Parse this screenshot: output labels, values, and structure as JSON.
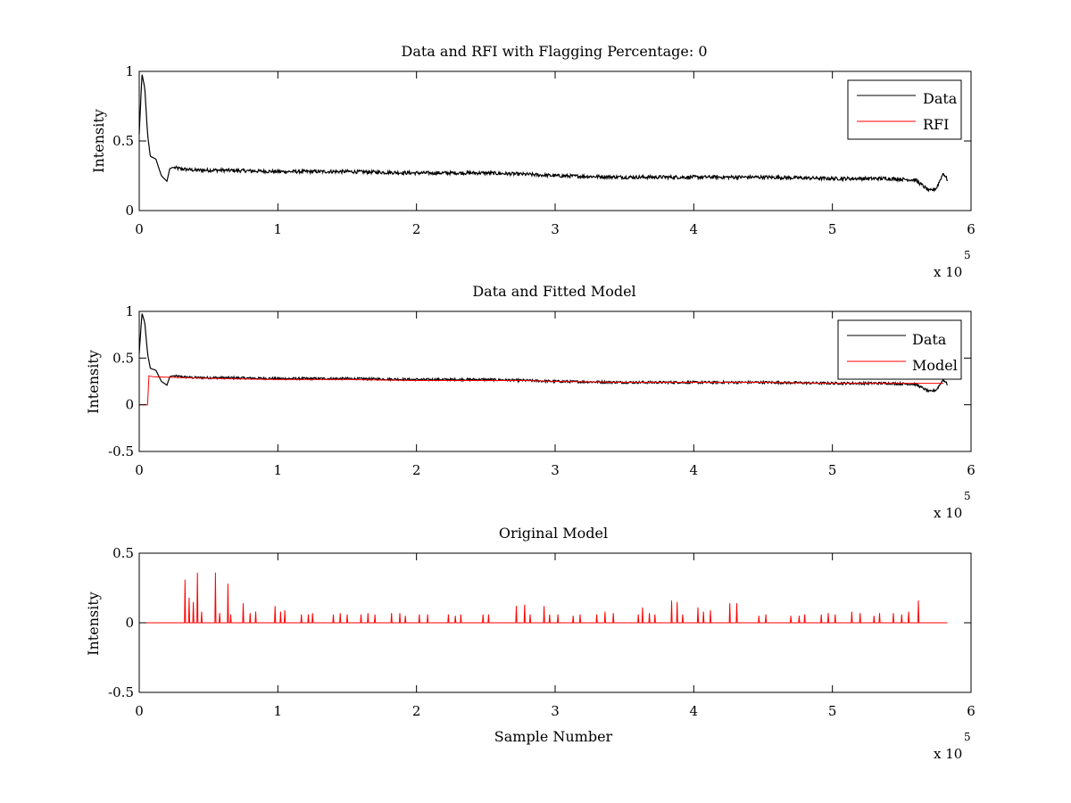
{
  "chart_data": [
    {
      "type": "line",
      "title": "Data and RFI with Flagging Percentage: 0",
      "xlabel": "",
      "ylabel": "Intensity",
      "xlim": [
        0,
        600000
      ],
      "ylim": [
        0,
        1
      ],
      "x_ticks": [
        0,
        1,
        2,
        3,
        4,
        5,
        6
      ],
      "y_ticks": [
        0,
        0.5,
        1
      ],
      "x_tick_labels": [
        "0",
        "1",
        "2",
        "3",
        "4",
        "5",
        "6"
      ],
      "y_tick_labels": [
        "0",
        "0.5",
        "1"
      ],
      "x_exponent_label": "x 10",
      "x_exponent_power": "5",
      "legend_position": "top-right",
      "series": [
        {
          "name": "Data",
          "color": "#000000",
          "x": [
            0,
            2000,
            4000,
            6000,
            8000,
            12000,
            16000,
            20000,
            22000,
            24000,
            30000,
            40000,
            60000,
            100000,
            150000,
            200000,
            250000,
            280000,
            300000,
            350000,
            400000,
            450000,
            500000,
            540000,
            560000,
            570000,
            575000,
            580000,
            583000
          ],
          "y": [
            0.55,
            0.98,
            0.88,
            0.55,
            0.39,
            0.37,
            0.25,
            0.21,
            0.3,
            0.31,
            0.3,
            0.29,
            0.29,
            0.28,
            0.28,
            0.27,
            0.27,
            0.26,
            0.25,
            0.24,
            0.24,
            0.24,
            0.23,
            0.23,
            0.22,
            0.14,
            0.16,
            0.27,
            0.22
          ]
        },
        {
          "name": "RFI",
          "color": "#ff0000",
          "x": [],
          "y": []
        }
      ]
    },
    {
      "type": "line",
      "title": "Data and Fitted Model",
      "xlabel": "",
      "ylabel": "Intensity",
      "xlim": [
        0,
        600000
      ],
      "ylim": [
        -0.5,
        1
      ],
      "x_ticks": [
        0,
        1,
        2,
        3,
        4,
        5,
        6
      ],
      "y_ticks": [
        -0.5,
        0,
        0.5,
        1
      ],
      "x_tick_labels": [
        "0",
        "1",
        "2",
        "3",
        "4",
        "5",
        "6"
      ],
      "y_tick_labels": [
        "-0.5",
        "0",
        "0.5",
        "1"
      ],
      "x_exponent_label": "x 10",
      "x_exponent_power": "5",
      "legend_position": "top-right",
      "series": [
        {
          "name": "Data",
          "color": "#000000",
          "x": [
            0,
            2000,
            4000,
            6000,
            8000,
            12000,
            16000,
            20000,
            22000,
            24000,
            30000,
            40000,
            60000,
            100000,
            150000,
            200000,
            250000,
            280000,
            300000,
            350000,
            400000,
            450000,
            500000,
            540000,
            560000,
            570000,
            575000,
            580000,
            583000
          ],
          "y": [
            0.55,
            0.98,
            0.88,
            0.55,
            0.39,
            0.37,
            0.25,
            0.21,
            0.3,
            0.31,
            0.3,
            0.29,
            0.29,
            0.28,
            0.28,
            0.27,
            0.27,
            0.26,
            0.25,
            0.24,
            0.24,
            0.24,
            0.23,
            0.23,
            0.22,
            0.14,
            0.16,
            0.27,
            0.22
          ]
        },
        {
          "name": "Model",
          "color": "#ff0000",
          "x": [
            0,
            6000,
            7000,
            10000,
            30000,
            60000,
            100000,
            150000,
            200000,
            250000,
            280000,
            300000,
            350000,
            400000,
            450000,
            500000,
            550000,
            570000,
            580000
          ],
          "y": [
            0,
            0,
            0.31,
            0.3,
            0.29,
            0.28,
            0.27,
            0.27,
            0.26,
            0.26,
            0.26,
            0.25,
            0.24,
            0.24,
            0.24,
            0.23,
            0.23,
            0.23,
            0.23
          ]
        }
      ]
    },
    {
      "type": "line",
      "title": "Original Model",
      "xlabel": "Sample Number",
      "ylabel": "Intensity",
      "xlim": [
        0,
        600000
      ],
      "ylim": [
        -0.5,
        0.5
      ],
      "x_ticks": [
        0,
        1,
        2,
        3,
        4,
        5,
        6
      ],
      "y_ticks": [
        -0.5,
        0,
        0.5
      ],
      "x_tick_labels": [
        "0",
        "1",
        "2",
        "3",
        "4",
        "5",
        "6"
      ],
      "y_tick_labels": [
        "-0.5",
        "0",
        "0.5"
      ],
      "x_exponent_label": "x 10",
      "x_exponent_power": "5",
      "series": [
        {
          "name": "",
          "color": "#ff0000",
          "baseline": 0,
          "x_range": [
            0,
            583000
          ],
          "spikes": [
            [
              33000,
              0.31
            ],
            [
              36000,
              0.18
            ],
            [
              39000,
              0.15
            ],
            [
              42000,
              0.36
            ],
            [
              45000,
              0.08
            ],
            [
              55000,
              0.36
            ],
            [
              58000,
              0.07
            ],
            [
              64000,
              0.28
            ],
            [
              66000,
              0.06
            ],
            [
              75000,
              0.14
            ],
            [
              80000,
              0.07
            ],
            [
              84000,
              0.08
            ],
            [
              98000,
              0.12
            ],
            [
              102000,
              0.08
            ],
            [
              105000,
              0.09
            ],
            [
              117000,
              0.06
            ],
            [
              122000,
              0.06
            ],
            [
              125000,
              0.07
            ],
            [
              140000,
              0.06
            ],
            [
              145000,
              0.07
            ],
            [
              150000,
              0.06
            ],
            [
              160000,
              0.06
            ],
            [
              165000,
              0.07
            ],
            [
              170000,
              0.06
            ],
            [
              182000,
              0.07
            ],
            [
              188000,
              0.07
            ],
            [
              192000,
              0.05
            ],
            [
              202000,
              0.06
            ],
            [
              208000,
              0.06
            ],
            [
              223000,
              0.06
            ],
            [
              228000,
              0.05
            ],
            [
              232000,
              0.06
            ],
            [
              248000,
              0.06
            ],
            [
              252000,
              0.06
            ],
            [
              272000,
              0.12
            ],
            [
              278000,
              0.13
            ],
            [
              282000,
              0.06
            ],
            [
              292000,
              0.12
            ],
            [
              296000,
              0.06
            ],
            [
              302000,
              0.06
            ],
            [
              313000,
              0.05
            ],
            [
              318000,
              0.06
            ],
            [
              330000,
              0.06
            ],
            [
              336000,
              0.08
            ],
            [
              342000,
              0.07
            ],
            [
              360000,
              0.06
            ],
            [
              363000,
              0.11
            ],
            [
              368000,
              0.07
            ],
            [
              372000,
              0.06
            ],
            [
              384000,
              0.16
            ],
            [
              388000,
              0.15
            ],
            [
              392000,
              0.06
            ],
            [
              403000,
              0.11
            ],
            [
              407000,
              0.08
            ],
            [
              412000,
              0.09
            ],
            [
              426000,
              0.14
            ],
            [
              431000,
              0.14
            ],
            [
              447000,
              0.05
            ],
            [
              452000,
              0.06
            ],
            [
              470000,
              0.05
            ],
            [
              476000,
              0.05
            ],
            [
              480000,
              0.06
            ],
            [
              492000,
              0.06
            ],
            [
              497000,
              0.07
            ],
            [
              502000,
              0.06
            ],
            [
              514000,
              0.08
            ],
            [
              520000,
              0.07
            ],
            [
              530000,
              0.05
            ],
            [
              534000,
              0.07
            ],
            [
              544000,
              0.07
            ],
            [
              550000,
              0.06
            ],
            [
              555000,
              0.08
            ],
            [
              562000,
              0.16
            ]
          ]
        }
      ]
    }
  ]
}
